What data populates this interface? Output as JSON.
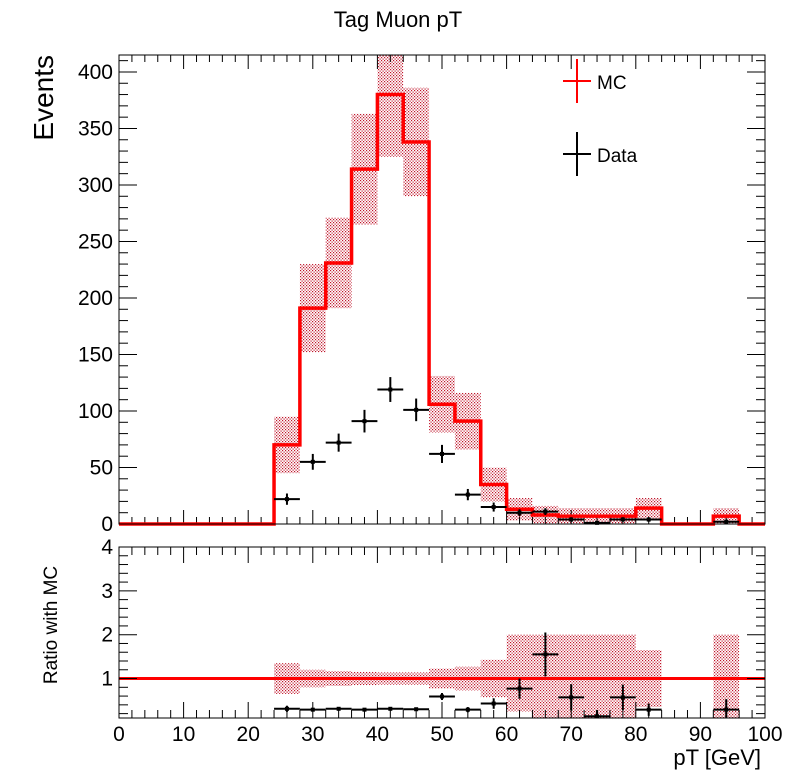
{
  "chart_data": [
    {
      "type": "histogram",
      "title": "Tag Muon pT",
      "xlabel": "",
      "ylabel": "Events",
      "xlim": [
        0,
        100
      ],
      "ylim": [
        0,
        415
      ],
      "yticks": [
        0,
        50,
        100,
        150,
        200,
        250,
        300,
        350,
        400
      ],
      "bin_width": 4,
      "bin_edges": [
        0,
        4,
        8,
        12,
        16,
        20,
        24,
        28,
        32,
        36,
        40,
        44,
        48,
        52,
        56,
        60,
        64,
        68,
        72,
        76,
        80,
        84,
        88,
        92,
        96,
        100
      ],
      "legend": {
        "position": "top-right",
        "entries": [
          "MC",
          "Data"
        ]
      },
      "series": [
        {
          "name": "MC",
          "color": "#ff0000",
          "style": "step with hatched uncertainty band",
          "values": [
            0,
            0,
            0,
            0,
            0,
            0,
            70,
            191,
            231,
            314,
            380,
            338,
            106,
            91,
            35,
            13,
            8,
            7,
            7,
            7,
            14,
            0,
            0,
            7,
            0
          ],
          "band_low": [
            0,
            0,
            0,
            0,
            0,
            0,
            45,
            152,
            191,
            265,
            325,
            290,
            81,
            66,
            20,
            3,
            0,
            0,
            0,
            0,
            5,
            0,
            0,
            0,
            0
          ],
          "band_high": [
            0,
            0,
            0,
            0,
            0,
            0,
            95,
            230,
            271,
            363,
            415,
            386,
            131,
            116,
            50,
            23,
            16,
            14,
            14,
            14,
            23,
            0,
            0,
            14,
            0
          ]
        },
        {
          "name": "Data",
          "color": "#000000",
          "style": "points with error bars",
          "x": [
            26,
            30,
            34,
            38,
            42,
            46,
            50,
            54,
            58,
            62,
            66,
            70,
            74,
            78,
            82,
            94
          ],
          "y": [
            22,
            55,
            72,
            91,
            119,
            101,
            62,
            26,
            15,
            10,
            11,
            4,
            1,
            4,
            4,
            2
          ],
          "yerr": [
            5,
            7,
            8,
            10,
            11,
            10,
            8,
            5,
            4,
            3,
            3,
            2,
            1,
            2,
            2,
            2
          ]
        }
      ]
    },
    {
      "type": "scatter",
      "title": "",
      "xlabel": "pT [GeV]",
      "ylabel": "Ratio with MC",
      "xlim": [
        0,
        100
      ],
      "ylim": [
        0.1,
        4
      ],
      "xticks": [
        0,
        10,
        20,
        30,
        40,
        50,
        60,
        70,
        80,
        90,
        100
      ],
      "yticks": [
        1,
        2,
        3,
        4
      ],
      "reference_line": {
        "y": 1,
        "color": "#ff0000"
      },
      "band": {
        "x_start": [
          24,
          28,
          32,
          36,
          40,
          44,
          48,
          52,
          56,
          60,
          64,
          68,
          72,
          76,
          80,
          92
        ],
        "low": [
          0.65,
          0.8,
          0.83,
          0.85,
          0.86,
          0.86,
          0.77,
          0.73,
          0.57,
          0.25,
          0.1,
          0.1,
          0.1,
          0.1,
          0.35,
          0.1
        ],
        "high": [
          1.35,
          1.2,
          1.17,
          1.15,
          1.14,
          1.14,
          1.23,
          1.27,
          1.43,
          2.0,
          2.0,
          2.0,
          2.0,
          2.0,
          1.65,
          2.0
        ]
      },
      "series": [
        {
          "name": "Data/MC",
          "color": "#000000",
          "x": [
            26,
            30,
            34,
            38,
            42,
            46,
            50,
            54,
            58,
            62,
            66,
            70,
            74,
            78,
            82,
            94
          ],
          "y": [
            0.31,
            0.29,
            0.31,
            0.29,
            0.31,
            0.3,
            0.59,
            0.29,
            0.43,
            0.77,
            1.55,
            0.57,
            0.14,
            0.57,
            0.29,
            0.29
          ],
          "yerr": [
            0.07,
            0.04,
            0.03,
            0.03,
            0.03,
            0.03,
            0.08,
            0.06,
            0.12,
            0.23,
            0.5,
            0.3,
            0.14,
            0.29,
            0.14,
            0.24
          ]
        }
      ]
    }
  ]
}
